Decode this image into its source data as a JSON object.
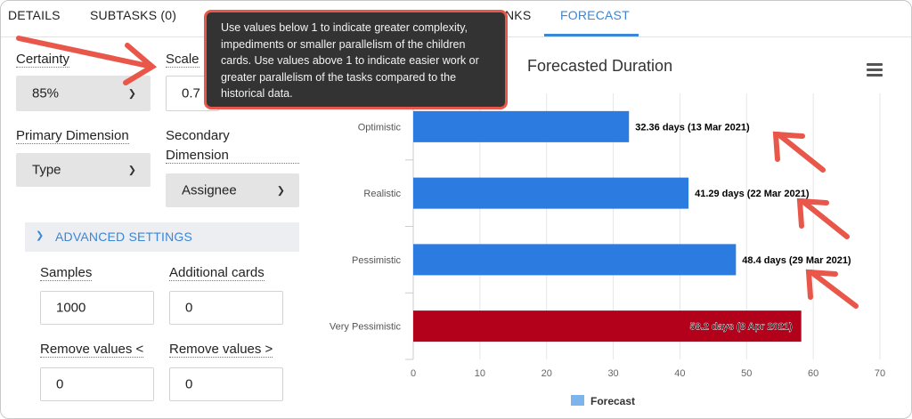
{
  "tabs": [
    "DETAILS",
    "SUBTASKS (0)",
    "NKS",
    "FORECAST"
  ],
  "left_panel": {
    "certainty_label": "Certainty",
    "certainty_value": "85%",
    "scale_label": "Scale",
    "scale_value": "0.7",
    "primary_dimension_label": "Primary Dimension",
    "primary_dimension_value": "Type",
    "secondary_dimension_label_line1": "Secondary",
    "secondary_dimension_label_line2": "Dimension",
    "secondary_dimension_value": "Assignee",
    "advanced_settings_label": "ADVANCED SETTINGS",
    "samples_label": "Samples",
    "samples_value": "1000",
    "additional_cards_label": "Additional cards",
    "additional_cards_value": "0",
    "remove_lt_label": "Remove values <",
    "remove_lt_value": "0",
    "remove_gt_label": "Remove values >",
    "remove_gt_value": "0"
  },
  "tooltip": {
    "text": "Use values below 1 to indicate greater complexity, impediments or smaller parallelism of the children cards. Use values above 1 to indicate easier work or greater parallelism of the tasks compared to the historical data."
  },
  "colors": {
    "accent": "#3b86d6",
    "bar_blue": "#2b7be0",
    "bar_red": "#b3001b",
    "annotation": "#e8574a"
  },
  "chart_data": {
    "type": "bar",
    "orientation": "horizontal",
    "title": "Forecasted Duration",
    "categories": [
      "Optimistic",
      "Realistic",
      "Pessimistic",
      "Very Pessimistic"
    ],
    "series": [
      {
        "name": "Forecast",
        "values": [
          32.36,
          41.29,
          48.4,
          58.2
        ],
        "labels": [
          "32.36 days (13 Mar 2021)",
          "41.29 days (22 Mar 2021)",
          "48.4 days (29 Mar 2021)",
          "58.2 days (8 Apr 2021)"
        ]
      }
    ],
    "xlim": [
      0,
      70
    ],
    "xticks": [
      0,
      10,
      20,
      30,
      40,
      50,
      60,
      70
    ],
    "grid": true,
    "legend": "bottom",
    "legend_label": "Forecast"
  }
}
